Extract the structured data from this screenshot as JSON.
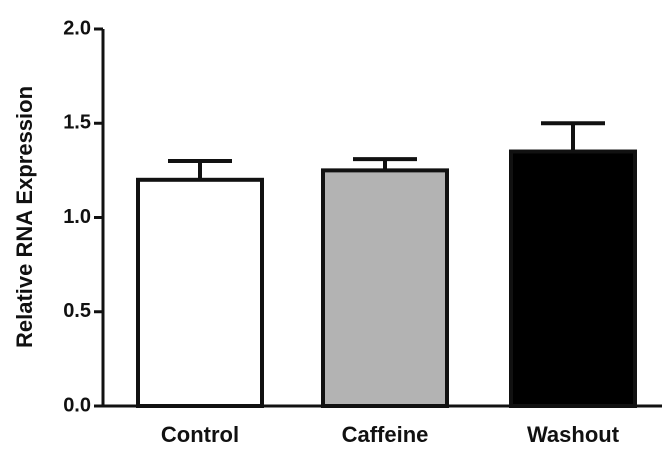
{
  "chart_data": {
    "type": "bar",
    "y_label": "Relative RNA Expression",
    "categories": [
      "Control",
      "Caffeine",
      "Washout"
    ],
    "values": [
      1.2,
      1.25,
      1.35
    ],
    "errors": [
      0.1,
      0.06,
      0.15
    ],
    "colors": [
      "#ffffff",
      "#b3b3b3",
      "#000000"
    ],
    "ylim": [
      0,
      2
    ],
    "yticks": [
      {
        "value": 0,
        "label": "0.0"
      },
      0.5,
      {
        "value": 1,
        "label": "1.0"
      },
      1.5,
      {
        "value": 2,
        "label": "2.0"
      }
    ],
    "grid": false
  }
}
